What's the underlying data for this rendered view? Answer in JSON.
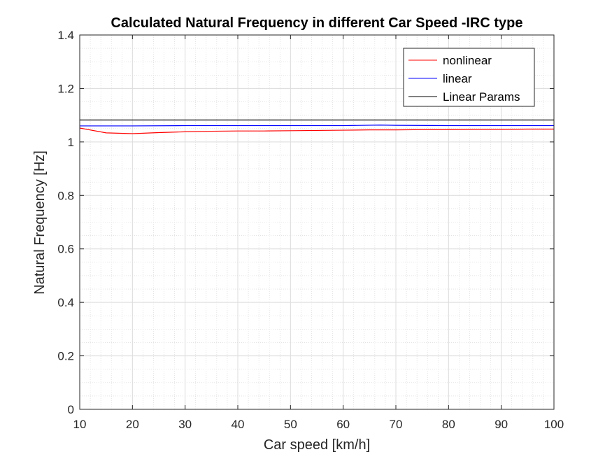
{
  "chart_data": {
    "type": "line",
    "title": "Calculated Natural Frequency in different Car Speed -IRC type",
    "xlabel": "Car speed [km/h]",
    "ylabel": "Natural Frequency [Hz]",
    "xlim": [
      10,
      100
    ],
    "ylim": [
      0,
      1.4
    ],
    "x_ticks": [
      10,
      20,
      30,
      40,
      50,
      60,
      70,
      80,
      90,
      100
    ],
    "x_tick_labels": [
      "10",
      "20",
      "30",
      "40",
      "50",
      "60",
      "70",
      "80",
      "90",
      "100"
    ],
    "y_ticks": [
      0,
      0.2,
      0.4,
      0.6,
      0.8,
      1.0,
      1.2,
      1.4
    ],
    "y_tick_labels": [
      "0",
      "0.2",
      "0.4",
      "0.6",
      "0.8",
      "1",
      "1.2",
      "1.4"
    ],
    "grid": true,
    "minor_grid": true,
    "legend_position": "top-right",
    "series": [
      {
        "name": "nonlinear",
        "color": "#ff0000",
        "x": [
          10,
          15,
          20,
          25,
          30,
          35,
          40,
          45,
          50,
          55,
          60,
          65,
          70,
          75,
          80,
          85,
          90,
          95,
          100
        ],
        "y": [
          1.052,
          1.034,
          1.031,
          1.035,
          1.038,
          1.04,
          1.041,
          1.041,
          1.042,
          1.043,
          1.044,
          1.045,
          1.045,
          1.046,
          1.046,
          1.047,
          1.047,
          1.048,
          1.048
        ]
      },
      {
        "name": "linear",
        "color": "#0000ff",
        "x": [
          10,
          20,
          30,
          40,
          50,
          60,
          67,
          70,
          80,
          90,
          100
        ],
        "y": [
          1.06,
          1.06,
          1.061,
          1.061,
          1.061,
          1.061,
          1.063,
          1.062,
          1.061,
          1.061,
          1.061
        ]
      },
      {
        "name": "Linear Params",
        "color": "#000000",
        "x": [
          10,
          100
        ],
        "y": [
          1.082,
          1.082
        ]
      }
    ]
  }
}
